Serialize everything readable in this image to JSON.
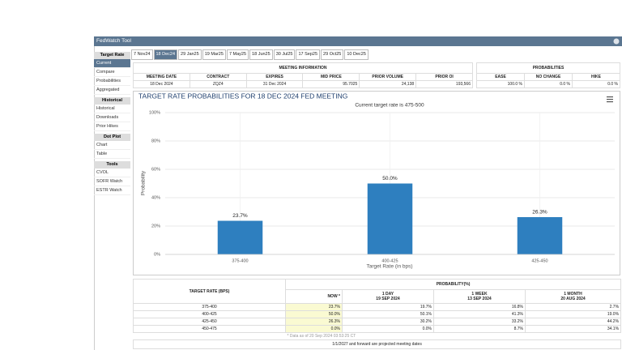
{
  "header": {
    "title": "FedWatch Tool"
  },
  "tabs": [
    "7 Nov24",
    "18 Dec24",
    "29 Jan25",
    "19 Mar25",
    "7 May25",
    "18 Jun25",
    "30 Jul25",
    "17 Sep25",
    "29 Oct25",
    "10 Dec25"
  ],
  "sidebar": [
    {
      "heading": "Target Rate",
      "items": [
        "Current",
        "Compare",
        "Probabilities",
        "Aggregated"
      ]
    },
    {
      "heading": "Historical",
      "items": [
        "Historical",
        "Downloads",
        "Prior Hikes"
      ]
    },
    {
      "heading": "Dot Plot",
      "items": [
        "Chart",
        "Table"
      ]
    },
    {
      "heading": "Tools",
      "items": [
        "CVOL",
        "SOFR Watch",
        "ESTR Watch"
      ]
    }
  ],
  "meeting_info": {
    "title": "MEETING INFORMATION",
    "columns": [
      "MEETING DATE",
      "CONTRACT",
      "EXPIRES",
      "MID PRICE",
      "PRIOR VOLUME",
      "PRIOR OI"
    ],
    "values": [
      "18 Dec 2024",
      "ZQZ4",
      "31 Dec 2024",
      "95.7025",
      "24,138",
      "193,566"
    ]
  },
  "probabilities": {
    "title": "PROBABILITIES",
    "columns": [
      "EASE",
      "NO CHANGE",
      "HIKE"
    ],
    "values": [
      "100.0 %",
      "0.0 %",
      "0.0 %"
    ]
  },
  "chart_data": {
    "type": "bar",
    "title": "TARGET RATE PROBABILITIES FOR 18 DEC 2024 FED MEETING",
    "subtitle": "Current target rate is 475-500",
    "x_label": "Target Rate (in bps)",
    "y_label": "Probability",
    "categories": [
      "375-400",
      "400-425",
      "425-450"
    ],
    "values": [
      23.7,
      50.0,
      26.3
    ],
    "value_labels": [
      "23.7%",
      "50.0%",
      "26.3%"
    ],
    "color": "#2e7fbf",
    "ylim": [
      0,
      100
    ],
    "yticks": [
      {
        "value": 0,
        "label": "0%"
      },
      {
        "value": 20,
        "label": "20%"
      },
      {
        "value": 40,
        "label": "40%"
      },
      {
        "value": 60,
        "label": "60%"
      },
      {
        "value": 80,
        "label": "80%"
      },
      {
        "value": 100,
        "label": "100%"
      }
    ],
    "grid": true
  },
  "probability_table": {
    "row_header": "TARGET RATE (BPS)",
    "group_header": "PROBABILITY(%)",
    "columns": [
      {
        "label": "NOW *"
      },
      {
        "label": "1 DAY",
        "date": "19 SEP 2024"
      },
      {
        "label": "1 WEEK",
        "date": "13 SEP 2024"
      },
      {
        "label": "1 MONTH",
        "date": "20 AUG 2024"
      }
    ],
    "rows": [
      [
        "375-400",
        "23.7%",
        "19.7%",
        "16.8%",
        "2.7%"
      ],
      [
        "400-425",
        "50.0%",
        "50.1%",
        "41.3%",
        "19.0%"
      ],
      [
        "425-450",
        "26.3%",
        "30.2%",
        "33.2%",
        "44.2%"
      ],
      [
        "450-475",
        "0.0%",
        "0.0%",
        "8.7%",
        "34.1%"
      ]
    ],
    "note": "* Data as of 20 Sep 2024 03:53:25 CT",
    "footer": "1/1/2027 and forward are projected meeting dates"
  }
}
